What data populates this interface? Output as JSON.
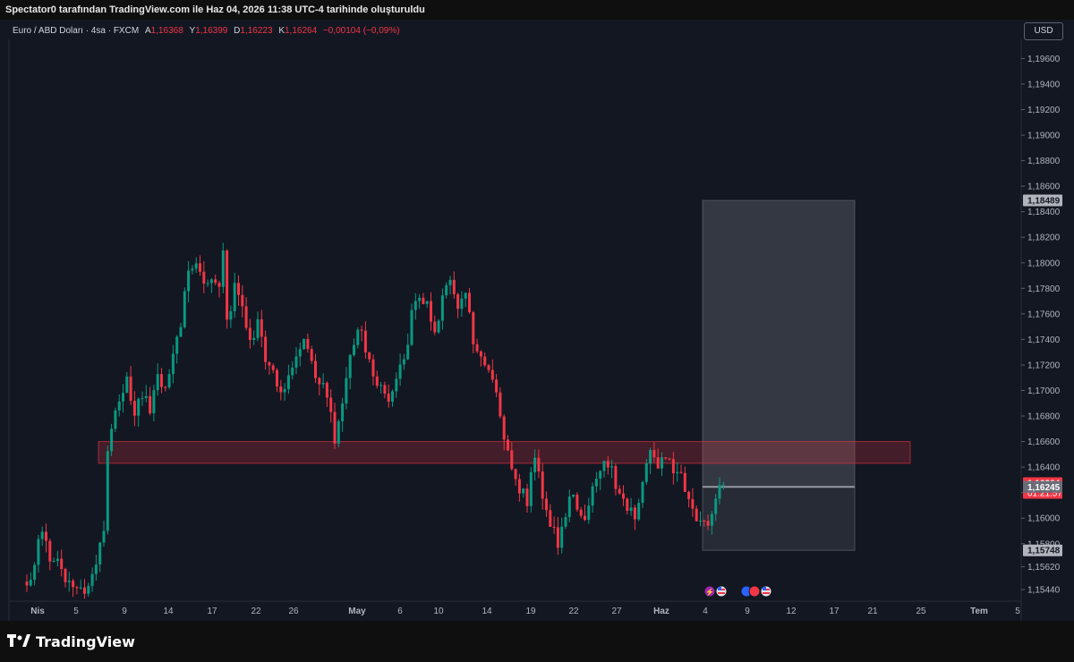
{
  "header": {
    "caption": "Spectator0 tarafından TradingView.com ile Haz 04, 2026 11:38 UTC-4 tarihinde oluşturuldu"
  },
  "symbol_bar": {
    "name": "Euro / ABD Doları · 4sa · FXCM",
    "open_label": "A",
    "open_value": "1,16368",
    "high_label": "Y",
    "high_value": "1,16399",
    "low_label": "D",
    "low_value": "1,16223",
    "close_label": "K",
    "close_value": "1,16264",
    "change": "−0,00104 (−0,09%)"
  },
  "currency_button": "USD",
  "brand": {
    "name": "TradingView"
  },
  "colors": {
    "background": "#131722",
    "up": "#089981",
    "down": "#f23645",
    "zone": "#f23645",
    "box": "#787b86",
    "axis_text": "#b2b5be"
  },
  "chart_data": {
    "type": "candlestick",
    "y_axis": {
      "side": "right",
      "range": [
        1.1535,
        1.1975
      ],
      "ticks": [
        "1,19600",
        "1,19400",
        "1,19200",
        "1,19000",
        "1,18800",
        "1,18600",
        "1,18400",
        "1,18200",
        "1,18000",
        "1,17800",
        "1,17600",
        "1,17400",
        "1,17200",
        "1,17000",
        "1,16800",
        "1,16600",
        "1,16400",
        "1,16200",
        "1,16000",
        "1,15800",
        "1,15620",
        "1,15440"
      ]
    },
    "x_axis": {
      "ticks": [
        "Nis",
        "5",
        "9",
        "14",
        "17",
        "22",
        "26",
        "May",
        "6",
        "10",
        "14",
        "19",
        "22",
        "27",
        "Haz",
        "4",
        "9",
        "12",
        "17",
        "21",
        "25",
        "Tem",
        "5"
      ],
      "bold_ticks": [
        "Nis",
        "May",
        "Haz",
        "Tem"
      ]
    },
    "price_labels": [
      {
        "value": "1,18489",
        "kind": "box-top"
      },
      {
        "value": "1,16264",
        "kind": "last-price",
        "countdown": "01:21:57"
      },
      {
        "value": "1,16245",
        "kind": "level"
      },
      {
        "value": "1,15748",
        "kind": "box-bottom"
      }
    ],
    "zone": {
      "top": 1.166,
      "bottom": 1.1643
    },
    "box": {
      "top": 1.18489,
      "bottom": 1.15748,
      "level": 1.16245
    },
    "last_price": 1.16264,
    "path": [
      [
        0,
        1.1545
      ],
      [
        2,
        1.1562
      ],
      [
        4,
        1.1595
      ],
      [
        6,
        1.1565
      ],
      [
        8,
        1.1572
      ],
      [
        10,
        1.1555
      ],
      [
        12,
        1.1548
      ],
      [
        14,
        1.1542
      ],
      [
        16,
        1.155
      ],
      [
        18,
        1.1565
      ],
      [
        20,
        1.159
      ],
      [
        21,
        1.165
      ],
      [
        22,
        1.1672
      ],
      [
        24,
        1.169
      ],
      [
        26,
        1.1705
      ],
      [
        28,
        1.1682
      ],
      [
        30,
        1.17
      ],
      [
        32,
        1.1685
      ],
      [
        34,
        1.171
      ],
      [
        36,
        1.1698
      ],
      [
        38,
        1.1728
      ],
      [
        40,
        1.1755
      ],
      [
        42,
        1.179
      ],
      [
        44,
        1.18
      ],
      [
        46,
        1.1785
      ],
      [
        48,
        1.1792
      ],
      [
        50,
        1.178
      ],
      [
        51,
        1.1808
      ],
      [
        52,
        1.175
      ],
      [
        54,
        1.1785
      ],
      [
        56,
        1.176
      ],
      [
        58,
        1.174
      ],
      [
        60,
        1.1752
      ],
      [
        62,
        1.1725
      ],
      [
        64,
        1.1712
      ],
      [
        66,
        1.17
      ],
      [
        68,
        1.1712
      ],
      [
        70,
        1.1725
      ],
      [
        72,
        1.1745
      ],
      [
        74,
        1.1722
      ],
      [
        76,
        1.1705
      ],
      [
        78,
        1.17
      ],
      [
        80,
        1.166
      ],
      [
        82,
        1.1695
      ],
      [
        84,
        1.1728
      ],
      [
        86,
        1.1752
      ],
      [
        88,
        1.1735
      ],
      [
        90,
        1.1708
      ],
      [
        92,
        1.17
      ],
      [
        94,
        1.169
      ],
      [
        96,
        1.171
      ],
      [
        98,
        1.1725
      ],
      [
        100,
        1.1758
      ],
      [
        102,
        1.1778
      ],
      [
        104,
        1.1768
      ],
      [
        106,
        1.1745
      ],
      [
        108,
        1.1772
      ],
      [
        110,
        1.1788
      ],
      [
        112,
        1.1765
      ],
      [
        114,
        1.178
      ],
      [
        116,
        1.174
      ],
      [
        118,
        1.1725
      ],
      [
        120,
        1.1712
      ],
      [
        122,
        1.17
      ],
      [
        124,
        1.166
      ],
      [
        126,
        1.164
      ],
      [
        128,
        1.162
      ],
      [
        130,
        1.1615
      ],
      [
        132,
        1.165
      ],
      [
        134,
        1.162
      ],
      [
        136,
        1.1595
      ],
      [
        138,
        1.158
      ],
      [
        140,
        1.1605
      ],
      [
        142,
        1.1618
      ],
      [
        144,
        1.1598
      ],
      [
        146,
        1.161
      ],
      [
        148,
        1.1635
      ],
      [
        150,
        1.1648
      ],
      [
        152,
        1.1635
      ],
      [
        154,
        1.162
      ],
      [
        156,
        1.161
      ],
      [
        158,
        1.1595
      ],
      [
        160,
        1.1632
      ],
      [
        162,
        1.165
      ],
      [
        164,
        1.164
      ],
      [
        166,
        1.1652
      ],
      [
        168,
        1.1632
      ],
      [
        170,
        1.1638
      ],
      [
        172,
        1.1612
      ],
      [
        174,
        1.16
      ],
      [
        176,
        1.1595
      ],
      [
        178,
        1.1605
      ],
      [
        180,
        1.1625
      ],
      [
        181,
        1.16264
      ]
    ]
  }
}
